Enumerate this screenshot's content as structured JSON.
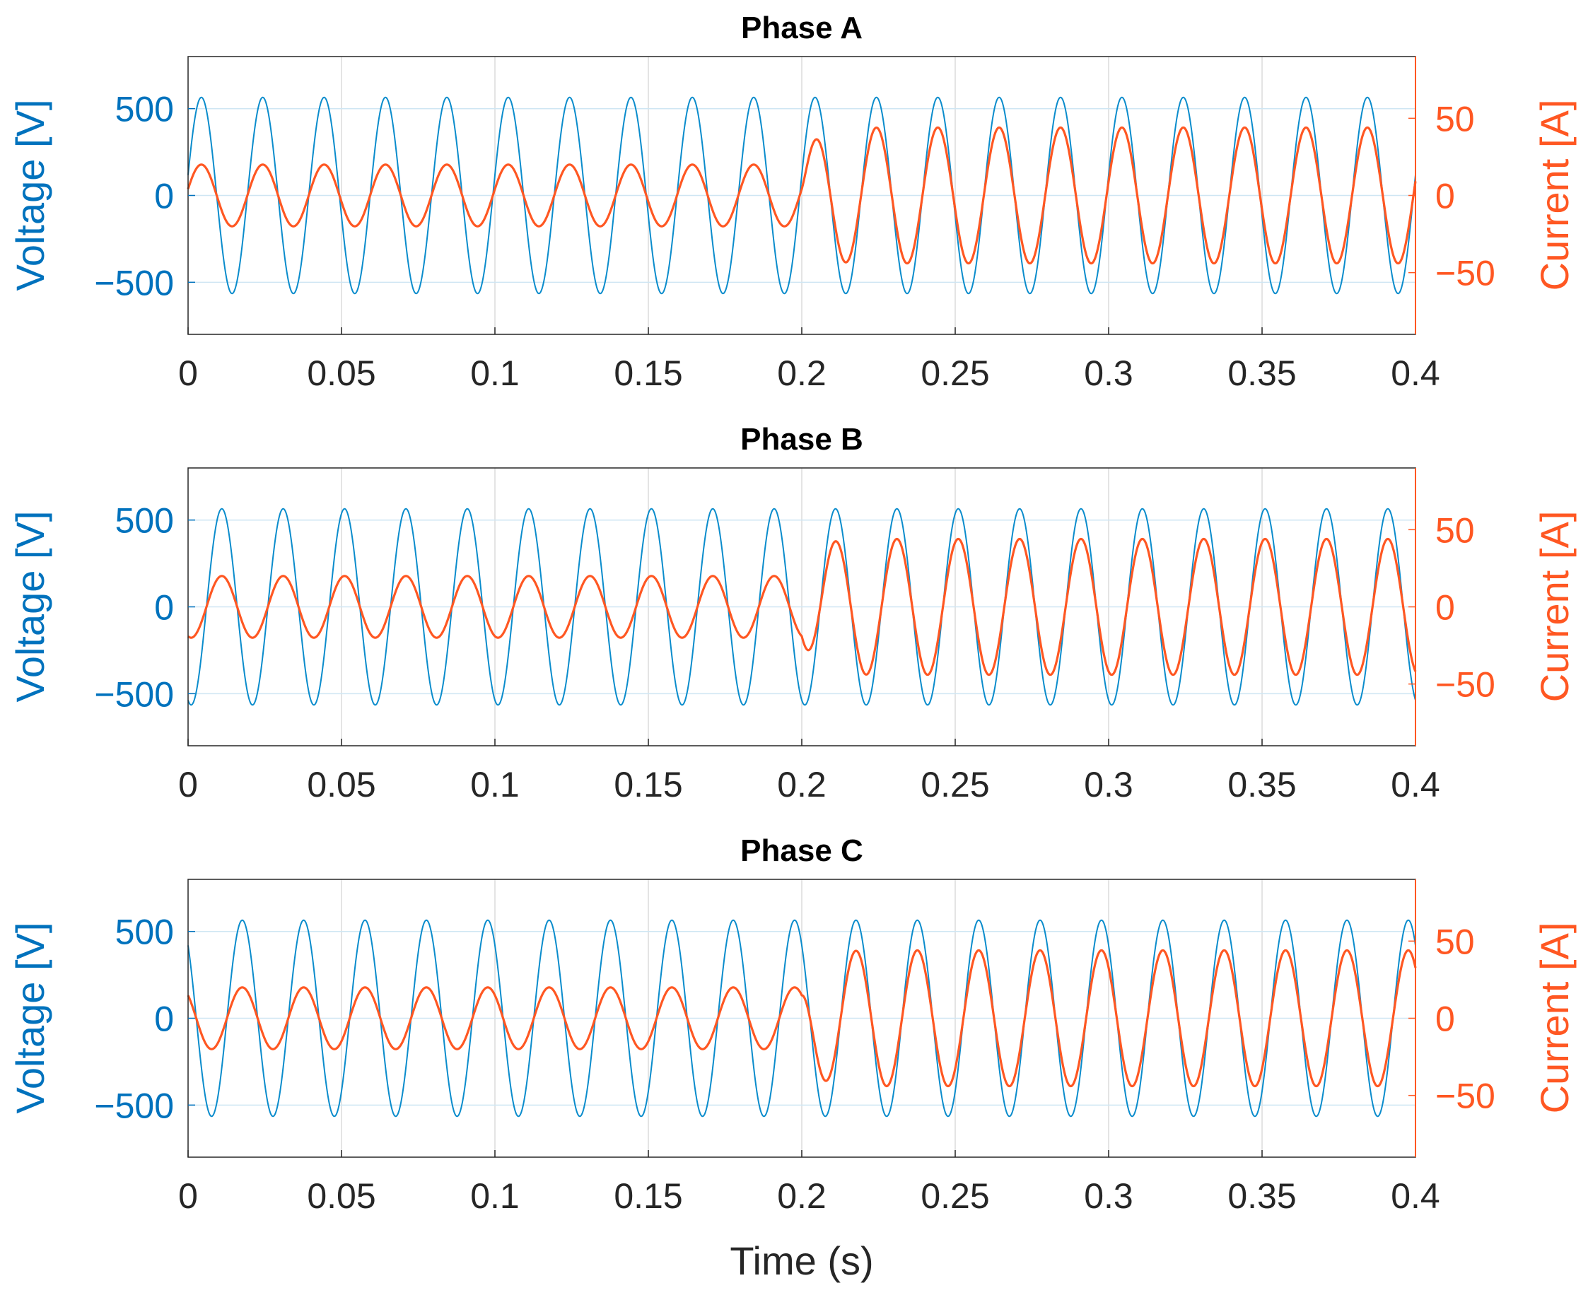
{
  "chart_data": [
    {
      "type": "line",
      "title": "Phase A",
      "xlabel": "",
      "xlim": [
        0,
        0.4
      ],
      "xticks": [
        0,
        0.05,
        0.1,
        0.15,
        0.2,
        0.25,
        0.3,
        0.35,
        0.4
      ],
      "xtick_labels": [
        "0",
        "0.05",
        "0.1",
        "0.15",
        "0.2",
        "0.25",
        "0.3",
        "0.35",
        "0.4"
      ],
      "grid": true,
      "y_left": {
        "label": "Voltage [V]",
        "ylim": [
          -800,
          800
        ],
        "ticks": [
          -500,
          0,
          500
        ],
        "tick_labels": [
          "−500",
          "0",
          "500"
        ],
        "color": "#0072BD"
      },
      "y_right": {
        "label": "Current [A]",
        "ylim": [
          -90,
          90
        ],
        "ticks": [
          -50,
          0,
          50
        ],
        "tick_labels": [
          "−50",
          "0",
          "50"
        ],
        "color": "#ff5722"
      },
      "series": [
        {
          "axis": "left",
          "color": "#0a8ccc",
          "waveform": {
            "frequency_hz": 50,
            "amplitude": 565,
            "phase_deg": 12
          }
        },
        {
          "axis": "right",
          "color": "#ff5722",
          "waveform": {
            "frequency_hz": 50,
            "phase_deg": 12,
            "amplitude_before": 20,
            "amplitude_after": 44,
            "step_time_s": 0.2
          }
        }
      ]
    },
    {
      "type": "line",
      "title": "Phase B",
      "xlabel": "",
      "xlim": [
        0,
        0.4
      ],
      "xticks": [
        0,
        0.05,
        0.1,
        0.15,
        0.2,
        0.25,
        0.3,
        0.35,
        0.4
      ],
      "xtick_labels": [
        "0",
        "0.05",
        "0.1",
        "0.15",
        "0.2",
        "0.25",
        "0.3",
        "0.35",
        "0.4"
      ],
      "grid": true,
      "y_left": {
        "label": "Voltage [V]",
        "ylim": [
          -800,
          800
        ],
        "ticks": [
          -500,
          0,
          500
        ],
        "tick_labels": [
          "−500",
          "0",
          "500"
        ],
        "color": "#0072BD"
      },
      "y_right": {
        "label": "Current [A]",
        "ylim": [
          -90,
          90
        ],
        "ticks": [
          -50,
          0,
          50
        ],
        "tick_labels": [
          "−50",
          "0",
          "50"
        ],
        "color": "#ff5722"
      },
      "series": [
        {
          "axis": "left",
          "color": "#0a8ccc",
          "waveform": {
            "frequency_hz": 50,
            "amplitude": 565,
            "phase_deg": -108
          }
        },
        {
          "axis": "right",
          "color": "#ff5722",
          "waveform": {
            "frequency_hz": 50,
            "phase_deg": -108,
            "amplitude_before": 20,
            "amplitude_after": 44,
            "step_time_s": 0.2
          }
        }
      ]
    },
    {
      "type": "line",
      "title": "Phase C",
      "xlabel": "Time (s)",
      "xlim": [
        0,
        0.4
      ],
      "xticks": [
        0,
        0.05,
        0.1,
        0.15,
        0.2,
        0.25,
        0.3,
        0.35,
        0.4
      ],
      "xtick_labels": [
        "0",
        "0.05",
        "0.1",
        "0.15",
        "0.2",
        "0.25",
        "0.3",
        "0.35",
        "0.4"
      ],
      "grid": true,
      "y_left": {
        "label": "Voltage [V]",
        "ylim": [
          -800,
          800
        ],
        "ticks": [
          -500,
          0,
          500
        ],
        "tick_labels": [
          "−500",
          "0",
          "500"
        ],
        "color": "#0072BD"
      },
      "y_right": {
        "label": "Current [A]",
        "ylim": [
          -90,
          90
        ],
        "ticks": [
          -50,
          0,
          50
        ],
        "tick_labels": [
          "−50",
          "0",
          "50"
        ],
        "color": "#ff5722"
      },
      "series": [
        {
          "axis": "left",
          "color": "#0a8ccc",
          "waveform": {
            "frequency_hz": 50,
            "amplitude": 565,
            "phase_deg": 132
          }
        },
        {
          "axis": "right",
          "color": "#ff5722",
          "waveform": {
            "frequency_hz": 50,
            "phase_deg": 132,
            "amplitude_before": 20,
            "amplitude_after": 44,
            "step_time_s": 0.2
          }
        }
      ]
    }
  ]
}
